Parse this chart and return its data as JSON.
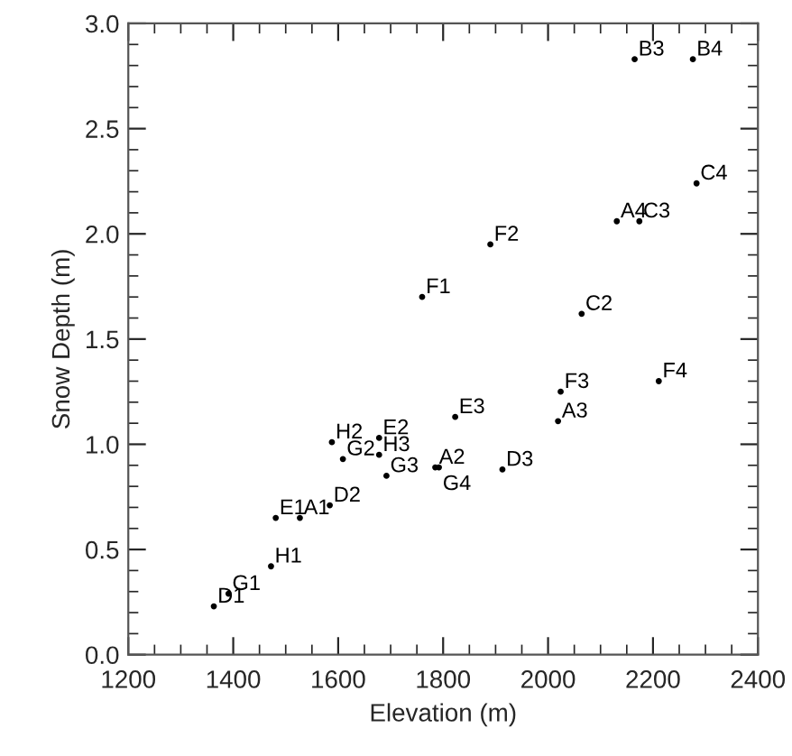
{
  "chart_data": {
    "type": "scatter",
    "xlabel": "Elevation (m)",
    "ylabel": "Snow Depth (m)",
    "xlim": [
      1200,
      2400
    ],
    "xticks": [
      1200,
      1400,
      1600,
      1800,
      2000,
      2200,
      2400
    ],
    "ylim": [
      0,
      3.0
    ],
    "yticks": [
      {
        "value": 0,
        "label": "0.0"
      },
      0.5,
      {
        "value": 1,
        "label": "1.0"
      },
      1.5,
      {
        "value": 2,
        "label": "2.0"
      },
      2.5,
      {
        "value": 3,
        "label": "3.0"
      }
    ],
    "marker": "circle",
    "grid": false,
    "legend": false,
    "series": [
      {
        "color": "#000000",
        "x": [
          2165,
          2276,
          2283,
          2131,
          2174,
          1890,
          1760,
          2064,
          2024,
          2211,
          1823,
          2019,
          1588,
          1678,
          1609,
          1678,
          1692,
          1785,
          1792,
          1913,
          1584,
          1481,
          1527,
          1472,
          1391,
          1363
        ],
        "values": [
          2.83,
          2.83,
          2.24,
          2.06,
          2.06,
          1.95,
          1.7,
          1.62,
          1.25,
          1.3,
          1.13,
          1.11,
          1.01,
          1.03,
          0.93,
          0.95,
          0.85,
          0.89,
          0.89,
          0.88,
          0.71,
          0.65,
          0.65,
          0.42,
          0.29,
          0.23
        ],
        "value_labels": [
          "B3",
          "B4",
          "C4",
          "A4",
          "C3",
          "F2",
          "F1",
          "C2",
          "F3",
          "F4",
          "E3",
          "A3",
          "H2",
          "E2",
          "G2",
          "H3",
          "G3",
          "A2",
          "G4",
          "D3",
          "D2",
          "E1",
          "A1",
          "H1",
          "G1",
          "D1"
        ]
      }
    ]
  }
}
